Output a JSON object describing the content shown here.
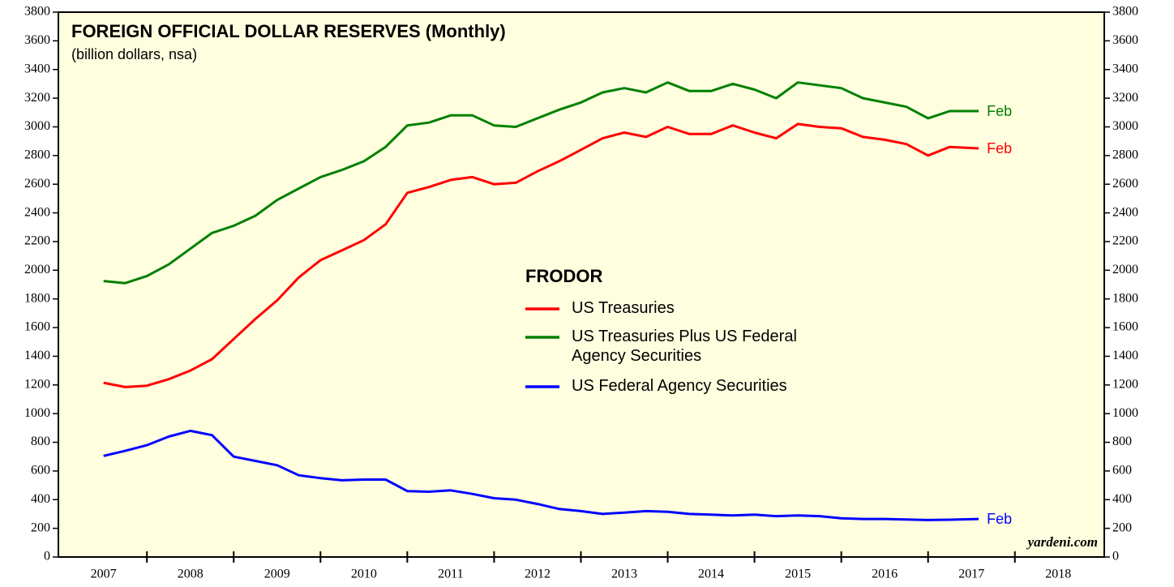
{
  "chart_data": {
    "type": "line",
    "title": "FOREIGN OFFICIAL DOLLAR RESERVES (Monthly)",
    "subtitle": "(billion dollars, nsa)",
    "legend_title": "FRODOR",
    "source": "yardeni.com",
    "x": [
      2007.0,
      2007.25,
      2007.5,
      2007.75,
      2008.0,
      2008.25,
      2008.5,
      2008.75,
      2009.0,
      2009.25,
      2009.5,
      2009.75,
      2010.0,
      2010.25,
      2010.5,
      2010.75,
      2011.0,
      2011.25,
      2011.5,
      2011.75,
      2012.0,
      2012.25,
      2012.5,
      2012.75,
      2013.0,
      2013.25,
      2013.5,
      2013.75,
      2014.0,
      2014.25,
      2014.5,
      2014.75,
      2015.0,
      2015.25,
      2015.5,
      2015.75,
      2016.0,
      2016.25,
      2016.5,
      2016.75,
      2017.083
    ],
    "xlim": [
      2006.48,
      2018.53
    ],
    "xticks": [
      2007,
      2008,
      2009,
      2010,
      2011,
      2012,
      2013,
      2014,
      2015,
      2016,
      2017,
      2018
    ],
    "ylim": [
      0,
      3800
    ],
    "yticks": [
      0,
      200,
      400,
      600,
      800,
      1000,
      1200,
      1400,
      1600,
      1800,
      2000,
      2200,
      2400,
      2600,
      2800,
      3000,
      3200,
      3400,
      3600,
      3800
    ],
    "background": "#ffffe0",
    "series": [
      {
        "name": "US Treasuries",
        "color": "#ff0000",
        "end_label": "Feb",
        "values": [
          1215,
          1185,
          1195,
          1240,
          1300,
          1380,
          1520,
          1660,
          1790,
          1950,
          2070,
          2140,
          2210,
          2320,
          2540,
          2580,
          2630,
          2650,
          2600,
          2610,
          2690,
          2760,
          2840,
          2920,
          2960,
          2930,
          3000,
          2950,
          2950,
          3010,
          2960,
          2920,
          3020,
          3000,
          2990,
          2930,
          2910,
          2880,
          2800,
          2860,
          2850
        ]
      },
      {
        "name": "US Treasuries Plus US Federal Agency Securities",
        "color": "#008000",
        "end_label": "Feb",
        "values": [
          1925,
          1910,
          1960,
          2040,
          2150,
          2260,
          2310,
          2380,
          2490,
          2570,
          2650,
          2700,
          2760,
          2860,
          3010,
          3030,
          3080,
          3080,
          3010,
          3000,
          3060,
          3120,
          3170,
          3240,
          3270,
          3240,
          3310,
          3250,
          3250,
          3300,
          3260,
          3200,
          3310,
          3290,
          3270,
          3200,
          3170,
          3140,
          3060,
          3110,
          3110
        ]
      },
      {
        "name": "US Federal Agency Securities",
        "color": "#0000ff",
        "end_label": "Feb",
        "values": [
          705,
          740,
          780,
          840,
          880,
          850,
          700,
          670,
          640,
          570,
          550,
          535,
          540,
          540,
          460,
          455,
          465,
          440,
          410,
          400,
          370,
          335,
          320,
          300,
          310,
          320,
          315,
          300,
          295,
          290,
          295,
          285,
          290,
          285,
          270,
          265,
          265,
          262,
          258,
          260,
          265
        ]
      }
    ]
  }
}
